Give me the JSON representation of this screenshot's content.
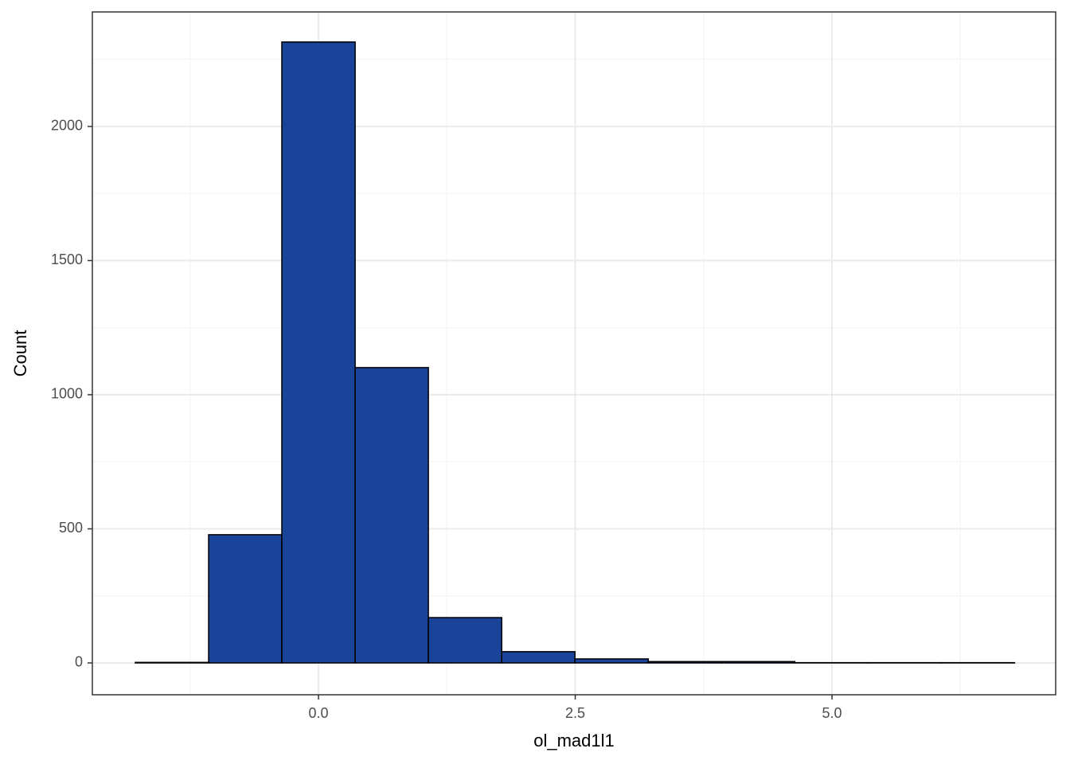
{
  "chart_data": {
    "type": "histogram",
    "x_label": "ol_mad1l1",
    "y_label": "Count",
    "bins": [
      -1.784,
      -1.07,
      -0.357,
      0.357,
      1.07,
      1.784,
      2.497,
      3.211,
      3.924,
      4.638,
      5.351,
      6.065,
      6.778
    ],
    "values": [
      2,
      478,
      2315,
      1101,
      169,
      42,
      15,
      5,
      5,
      1,
      1,
      1
    ],
    "color": "#19449a",
    "edge_color": "#000000",
    "xlim": [
      -2.202,
      7.178
    ],
    "ylim": [
      -118.7,
      2427
    ],
    "xticks": [
      {
        "value": 0,
        "label": "0.0"
      },
      {
        "value": 2.5,
        "label": "2.5"
      },
      {
        "value": 5,
        "label": "5.0"
      }
    ],
    "yticks": [
      0,
      500,
      1000,
      1500,
      2000
    ],
    "grid": true
  }
}
